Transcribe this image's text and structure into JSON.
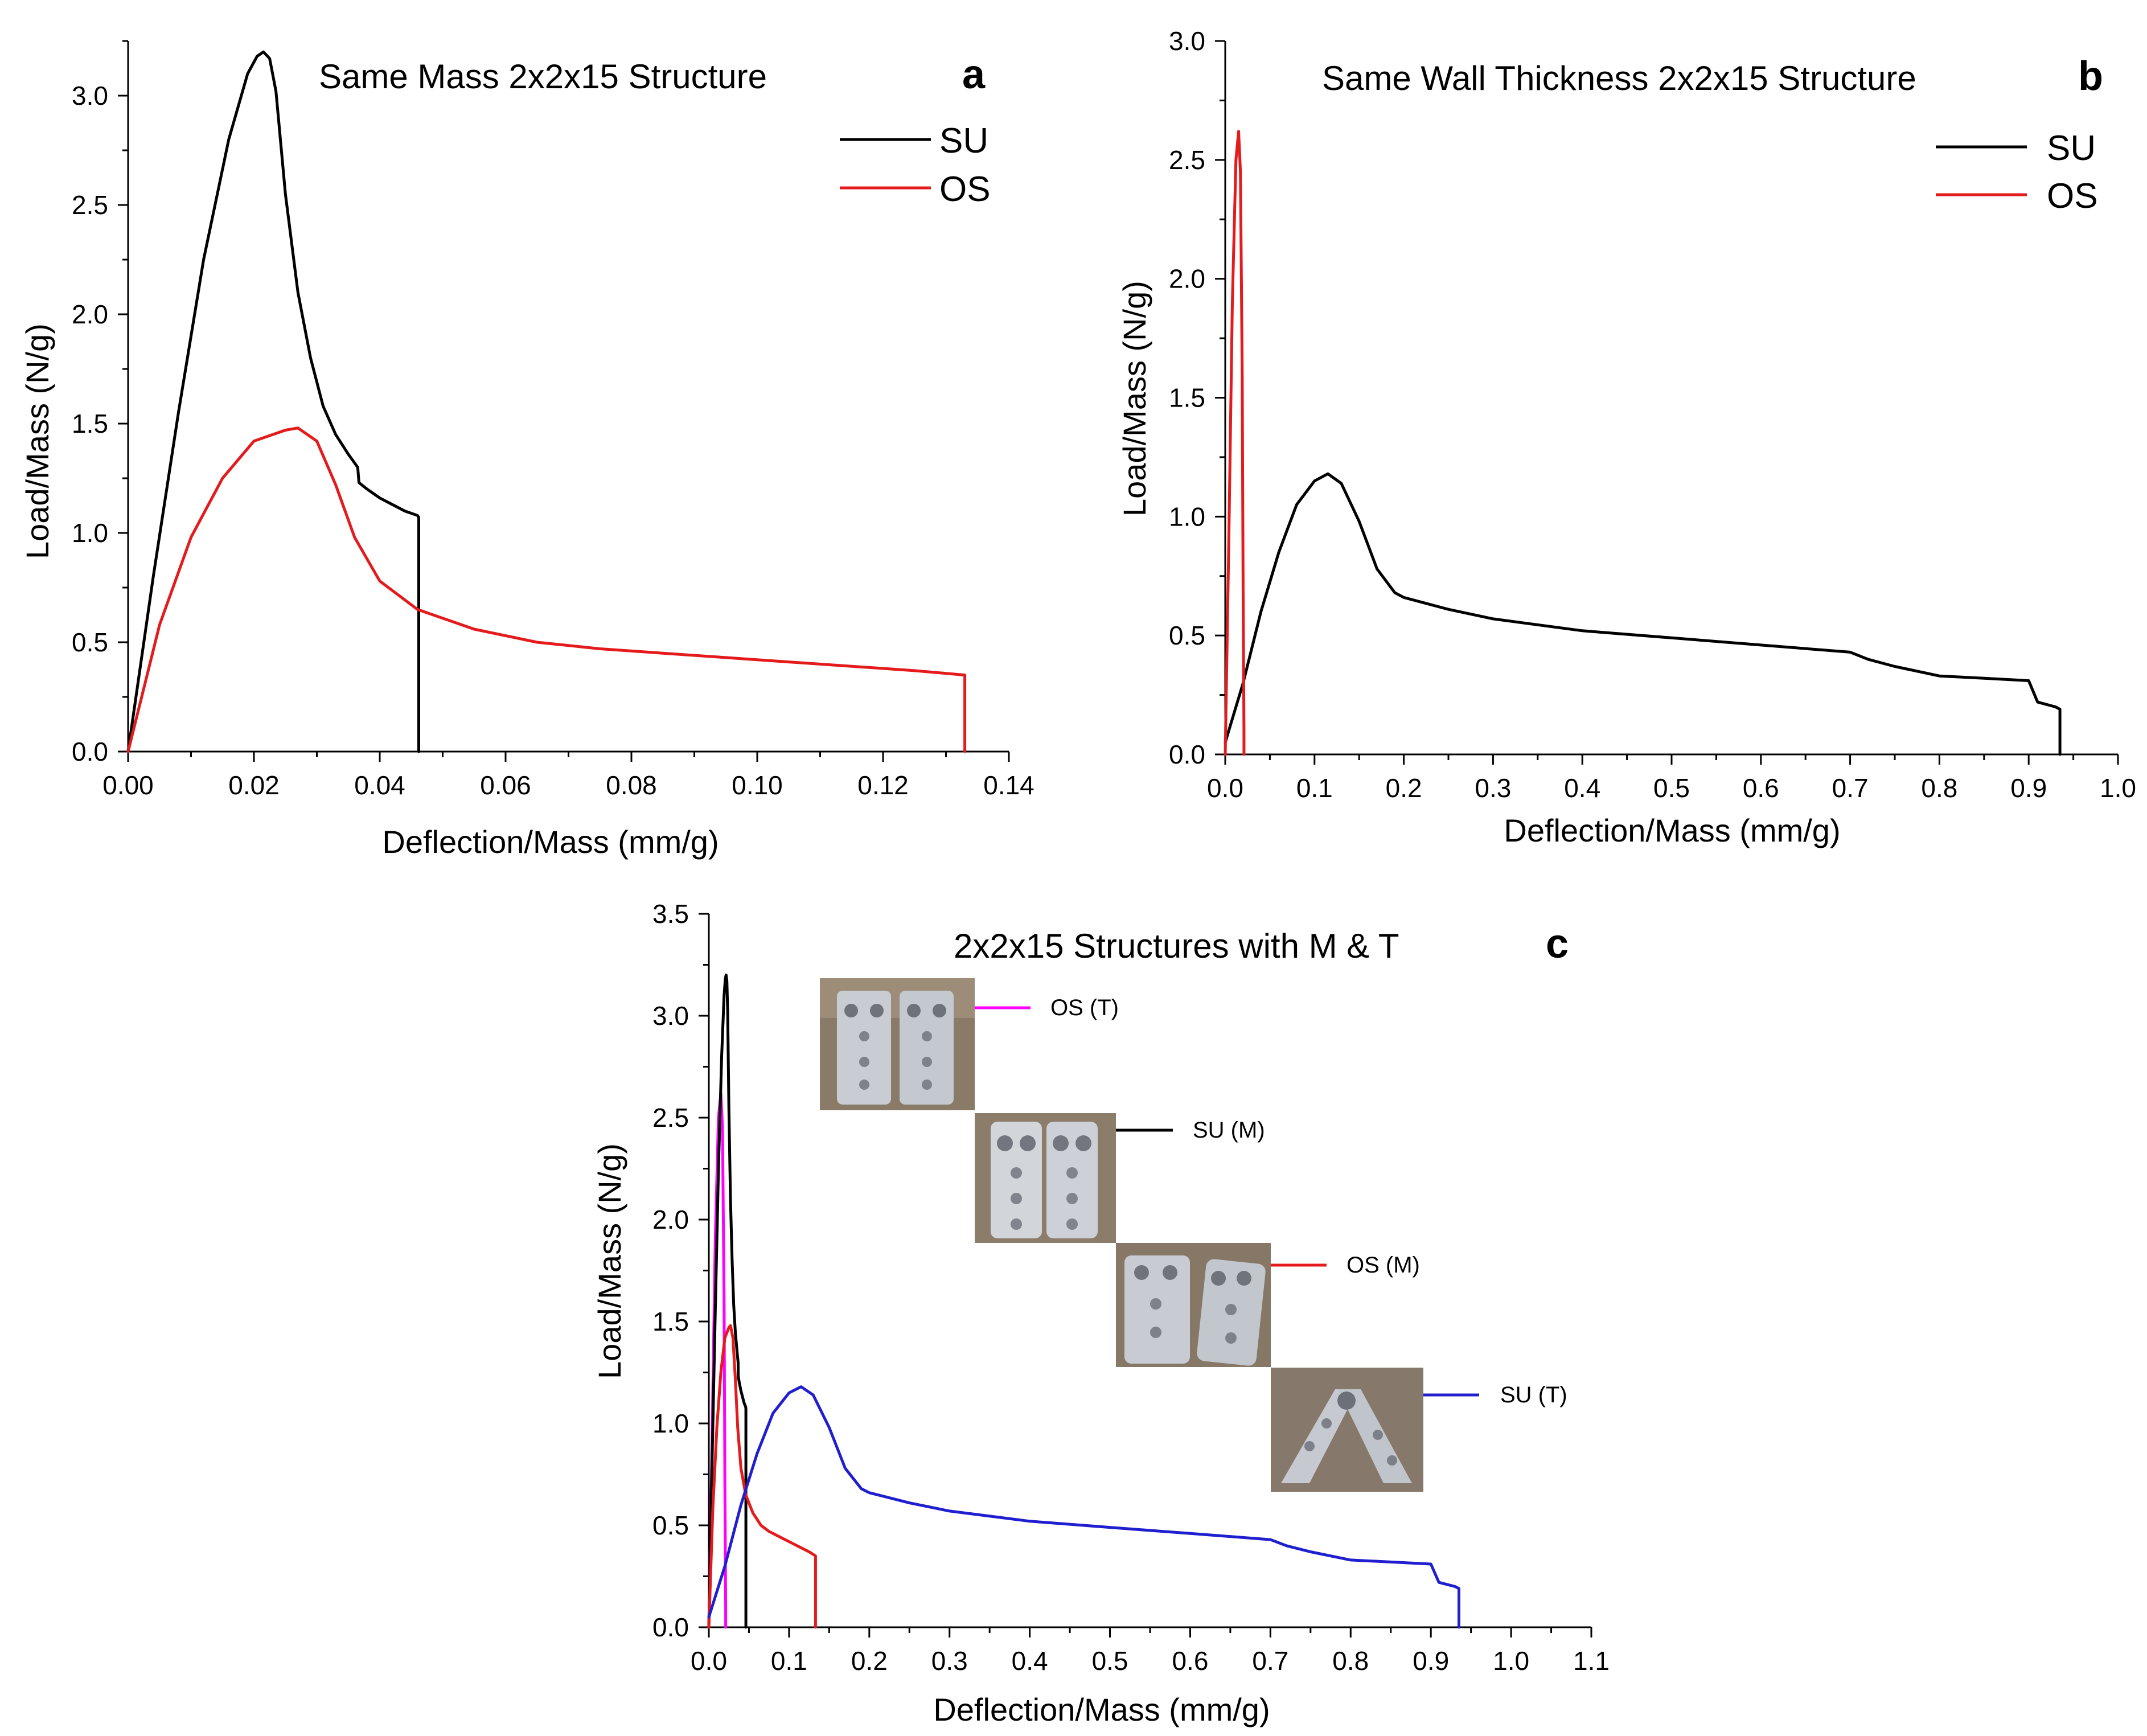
{
  "chart_data": [
    {
      "panel": "a",
      "type": "line",
      "title": "Same Mass 2x2x15 Structure",
      "xlabel": "Deflection/Mass (mm/g)",
      "ylabel": "Load/Mass (N/g)",
      "xlim": [
        0,
        0.14
      ],
      "ylim": [
        0,
        3.25
      ],
      "xticks": [
        0.0,
        0.02,
        0.04,
        0.06,
        0.08,
        0.1,
        0.12,
        0.14
      ],
      "xtick_labels": [
        "0.00",
        "0.02",
        "0.04",
        "0.06",
        "0.08",
        "0.10",
        "0.12",
        "0.14"
      ],
      "yticks": [
        0.0,
        0.5,
        1.0,
        1.5,
        2.0,
        2.5,
        3.0
      ],
      "ytick_labels": [
        "0.0",
        "0.5",
        "1.0",
        "1.5",
        "2.0",
        "2.5",
        "3.0"
      ],
      "legend_position": "top-right",
      "series": [
        {
          "name": "SU",
          "color": "#000000",
          "x": [
            0,
            0.004,
            0.008,
            0.012,
            0.016,
            0.019,
            0.0205,
            0.0215,
            0.0225,
            0.0235,
            0.025,
            0.027,
            0.029,
            0.031,
            0.033,
            0.035,
            0.036,
            0.0365,
            0.0367,
            0.038,
            0.04,
            0.042,
            0.044,
            0.046,
            0.0462,
            0.0462
          ],
          "y": [
            0,
            0.8,
            1.55,
            2.25,
            2.8,
            3.1,
            3.18,
            3.2,
            3.17,
            3.02,
            2.55,
            2.1,
            1.8,
            1.58,
            1.45,
            1.36,
            1.32,
            1.3,
            1.23,
            1.2,
            1.16,
            1.13,
            1.1,
            1.08,
            1.07,
            0
          ]
        },
        {
          "name": "OS",
          "color": "#e41a1c",
          "x": [
            0,
            0.005,
            0.01,
            0.015,
            0.02,
            0.025,
            0.027,
            0.03,
            0.033,
            0.036,
            0.04,
            0.046,
            0.055,
            0.065,
            0.075,
            0.085,
            0.095,
            0.105,
            0.115,
            0.125,
            0.133,
            0.133
          ],
          "y": [
            0,
            0.58,
            0.98,
            1.25,
            1.42,
            1.47,
            1.48,
            1.42,
            1.22,
            0.98,
            0.78,
            0.65,
            0.56,
            0.5,
            0.47,
            0.45,
            0.43,
            0.41,
            0.39,
            0.37,
            0.35,
            0
          ]
        }
      ]
    },
    {
      "panel": "b",
      "type": "line",
      "title": "Same Wall Thickness 2x2x15 Structure",
      "xlabel": "Deflection/Mass (mm/g)",
      "ylabel": "Load/Mass (N/g)",
      "xlim": [
        0,
        1.0
      ],
      "ylim": [
        0,
        3.0
      ],
      "xticks": [
        0.0,
        0.1,
        0.2,
        0.3,
        0.4,
        0.5,
        0.6,
        0.7,
        0.8,
        0.9,
        1.0
      ],
      "xtick_labels": [
        "0.0",
        "0.1",
        "0.2",
        "0.3",
        "0.4",
        "0.5",
        "0.6",
        "0.7",
        "0.8",
        "0.9",
        "1.0"
      ],
      "yticks": [
        0.0,
        0.5,
        1.0,
        1.5,
        2.0,
        2.5,
        3.0
      ],
      "ytick_labels": [
        "0.0",
        "0.5",
        "1.0",
        "1.5",
        "2.0",
        "2.5",
        "3.0"
      ],
      "legend_position": "top-right",
      "series": [
        {
          "name": "SU",
          "color": "#000000",
          "x": [
            0,
            0.02,
            0.04,
            0.06,
            0.08,
            0.1,
            0.115,
            0.13,
            0.15,
            0.17,
            0.19,
            0.2,
            0.25,
            0.3,
            0.4,
            0.5,
            0.6,
            0.7,
            0.72,
            0.75,
            0.8,
            0.85,
            0.9,
            0.91,
            0.92,
            0.93,
            0.935,
            0.935
          ],
          "y": [
            0.05,
            0.3,
            0.6,
            0.85,
            1.05,
            1.15,
            1.18,
            1.14,
            0.98,
            0.78,
            0.68,
            0.66,
            0.61,
            0.57,
            0.52,
            0.49,
            0.46,
            0.43,
            0.4,
            0.37,
            0.33,
            0.32,
            0.31,
            0.22,
            0.21,
            0.2,
            0.19,
            0
          ]
        },
        {
          "name": "OS",
          "color": "#e41a1c",
          "x": [
            0,
            0.004,
            0.008,
            0.012,
            0.015,
            0.017,
            0.019,
            0.02,
            0.021,
            0.021
          ],
          "y": [
            0,
            0.9,
            1.9,
            2.5,
            2.62,
            2.45,
            1.6,
            0.7,
            0.1,
            0
          ]
        }
      ]
    },
    {
      "panel": "c",
      "type": "line",
      "title": "2x2x15 Structures with M & T",
      "xlabel": "Deflection/Mass (mm/g)",
      "ylabel": "Load/Mass (N/g)",
      "xlim": [
        0,
        1.1
      ],
      "ylim": [
        0,
        3.5
      ],
      "xticks": [
        0.0,
        0.1,
        0.2,
        0.3,
        0.4,
        0.5,
        0.6,
        0.7,
        0.8,
        0.9,
        1.0,
        1.1
      ],
      "xtick_labels": [
        "0.0",
        "0.1",
        "0.2",
        "0.3",
        "0.4",
        "0.5",
        "0.6",
        "0.7",
        "0.8",
        "0.9",
        "1.0",
        "1.1"
      ],
      "yticks": [
        0.0,
        0.5,
        1.0,
        1.5,
        2.0,
        2.5,
        3.0,
        3.5
      ],
      "ytick_labels": [
        "0.0",
        "0.5",
        "1.0",
        "1.5",
        "2.0",
        "2.5",
        "3.0",
        "3.5"
      ],
      "legend_position": "center-right, staggered with specimen photos",
      "series": [
        {
          "name": "OS (T)",
          "color": "#ff00ff",
          "x": [
            0,
            0.004,
            0.008,
            0.012,
            0.015,
            0.017,
            0.019,
            0.02,
            0.021,
            0.021
          ],
          "y": [
            0,
            0.9,
            1.9,
            2.5,
            2.62,
            2.45,
            1.6,
            0.7,
            0.1,
            0
          ]
        },
        {
          "name": "SU (M)",
          "color": "#000000",
          "x": [
            0,
            0.004,
            0.008,
            0.012,
            0.016,
            0.019,
            0.0205,
            0.0215,
            0.0225,
            0.0235,
            0.025,
            0.027,
            0.029,
            0.031,
            0.033,
            0.035,
            0.036,
            0.0365,
            0.0367,
            0.038,
            0.04,
            0.042,
            0.044,
            0.046,
            0.0462,
            0.0462
          ],
          "y": [
            0,
            0.8,
            1.55,
            2.25,
            2.8,
            3.1,
            3.18,
            3.2,
            3.17,
            3.02,
            2.55,
            2.1,
            1.8,
            1.58,
            1.45,
            1.36,
            1.32,
            1.3,
            1.23,
            1.2,
            1.16,
            1.13,
            1.1,
            1.08,
            1.07,
            0
          ]
        },
        {
          "name": "OS (M)",
          "color": "#e41a1c",
          "x": [
            0,
            0.005,
            0.01,
            0.015,
            0.02,
            0.025,
            0.027,
            0.03,
            0.033,
            0.036,
            0.04,
            0.046,
            0.055,
            0.065,
            0.075,
            0.085,
            0.095,
            0.105,
            0.115,
            0.125,
            0.133,
            0.133
          ],
          "y": [
            0,
            0.58,
            0.98,
            1.25,
            1.42,
            1.47,
            1.48,
            1.42,
            1.22,
            0.98,
            0.78,
            0.65,
            0.56,
            0.5,
            0.47,
            0.45,
            0.43,
            0.41,
            0.39,
            0.37,
            0.35,
            0
          ]
        },
        {
          "name": "SU  (T)",
          "color": "#1f1fd0",
          "x": [
            0,
            0.02,
            0.04,
            0.06,
            0.08,
            0.1,
            0.115,
            0.13,
            0.15,
            0.17,
            0.19,
            0.2,
            0.25,
            0.3,
            0.4,
            0.5,
            0.6,
            0.7,
            0.72,
            0.75,
            0.8,
            0.85,
            0.9,
            0.91,
            0.92,
            0.93,
            0.935,
            0.935
          ],
          "y": [
            0.05,
            0.3,
            0.6,
            0.85,
            1.05,
            1.15,
            1.18,
            1.14,
            0.98,
            0.78,
            0.68,
            0.66,
            0.61,
            0.57,
            0.52,
            0.49,
            0.46,
            0.43,
            0.4,
            0.37,
            0.33,
            0.32,
            0.31,
            0.22,
            0.21,
            0.2,
            0.19,
            0
          ]
        }
      ]
    }
  ]
}
